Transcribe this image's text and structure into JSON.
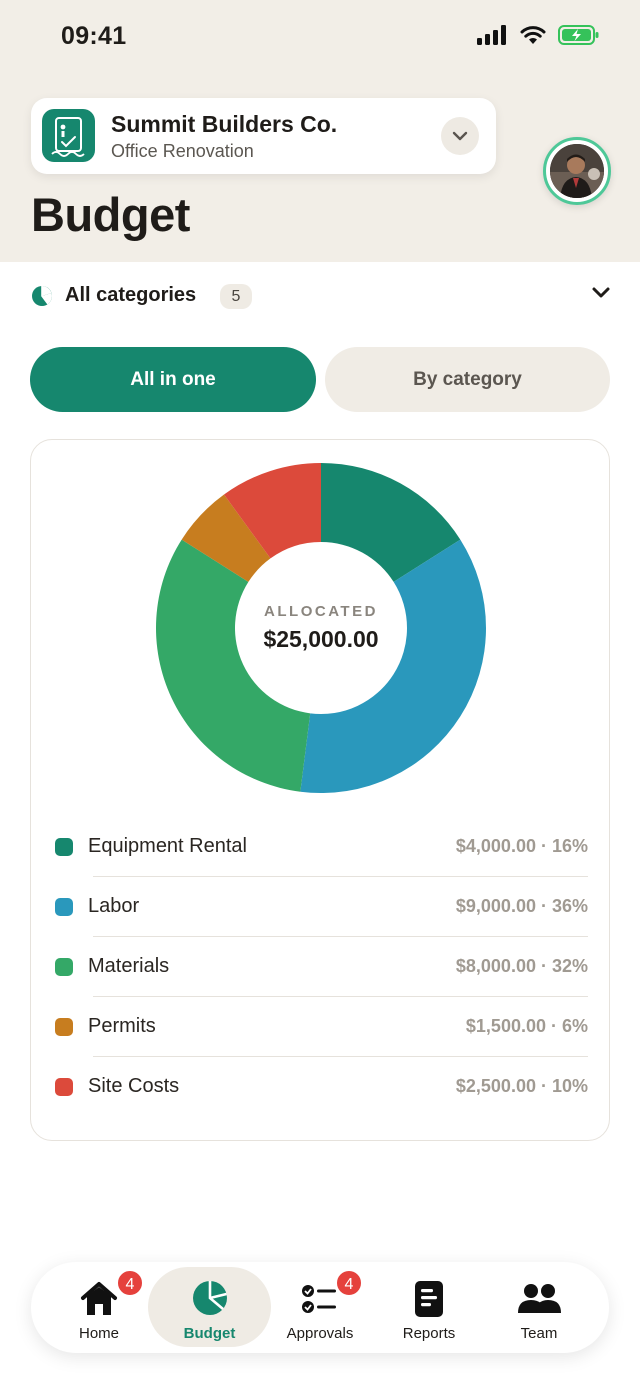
{
  "status_bar": {
    "time": "09:41"
  },
  "project": {
    "name": "Summit Builders Co.",
    "subtitle": "Office Renovation"
  },
  "page": {
    "title": "Budget"
  },
  "filter": {
    "label": "All categories",
    "count": "5"
  },
  "segments": {
    "all_in_one": "All in one",
    "by_category": "By category",
    "selected": "all_in_one"
  },
  "summary": {
    "label": "ALLOCATED",
    "value": "$25,000.00"
  },
  "chart_data": {
    "type": "pie",
    "categories": [
      "Equipment Rental",
      "Labor",
      "Materials",
      "Permits",
      "Site Costs"
    ],
    "values": [
      4000,
      9000,
      8000,
      1500,
      2500
    ],
    "percents": [
      16,
      36,
      32,
      6,
      10
    ],
    "colors": [
      "#16876e",
      "#2a98bc",
      "#34a867",
      "#c77d1f",
      "#dc4a3b"
    ]
  },
  "legend": [
    {
      "name": "Equipment Rental",
      "value": "$4,000.00 · 16%",
      "color": "#16876e"
    },
    {
      "name": "Labor",
      "value": "$9,000.00 · 36%",
      "color": "#2a98bc"
    },
    {
      "name": "Materials",
      "value": "$8,000.00 · 32%",
      "color": "#34a867"
    },
    {
      "name": "Permits",
      "value": "$1,500.00 · 6%",
      "color": "#c77d1f"
    },
    {
      "name": "Site Costs",
      "value": "$2,500.00 · 10%",
      "color": "#dc4a3b"
    }
  ],
  "tabs": [
    {
      "label": "Home",
      "icon": "home-icon",
      "badge": "4"
    },
    {
      "label": "Budget",
      "icon": "pie-chart-icon",
      "active": true
    },
    {
      "label": "Approvals",
      "icon": "checklist-icon",
      "badge": "4"
    },
    {
      "label": "Reports",
      "icon": "report-icon"
    },
    {
      "label": "Team",
      "icon": "team-icon"
    }
  ],
  "colors": {
    "accent": "#16876e",
    "badge": "#e5413c",
    "avatar_ring": "#4ec898"
  }
}
